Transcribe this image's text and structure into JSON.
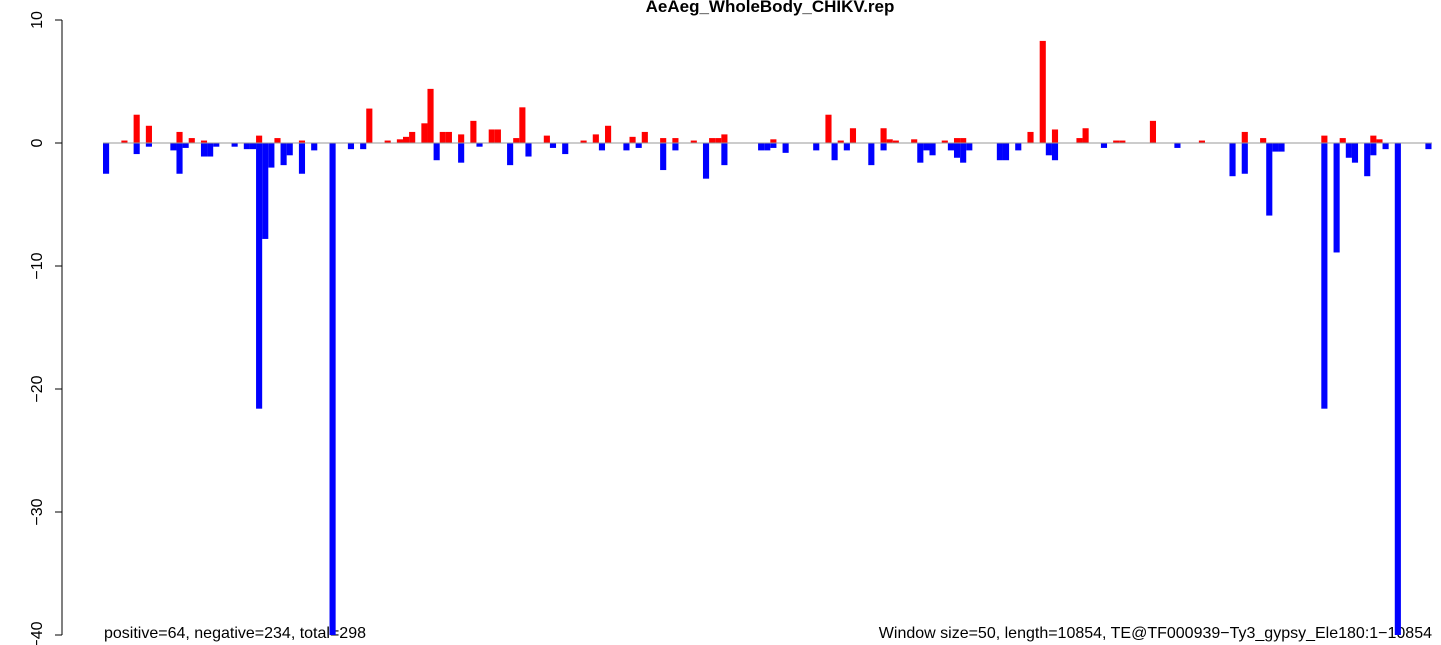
{
  "chart_data": {
    "type": "bar",
    "title": "AeAeg_WholeBody_CHIKV.rep",
    "annotations": [
      "positive=64, negative=234, total=298",
      "Window size=50, length=10854, TE@TF000939−Ty3_gypsy_Ele180:1−10854"
    ],
    "xlim": [
      0,
      10854
    ],
    "window": 50,
    "ylim": [
      -40,
      10
    ],
    "yticks": [
      10,
      0,
      {
        "value": -10,
        "label": "−10"
      },
      {
        "value": -20,
        "label": "−20"
      },
      {
        "value": -30,
        "label": "−30"
      },
      {
        "value": -40,
        "label": "−40"
      }
    ],
    "series": [
      {
        "name": "positive",
        "color": "#ff0000",
        "x": [
          150,
          250,
          350,
          600,
          700,
          800,
          1250,
          1400,
          1600,
          2150,
          2300,
          2400,
          2450,
          2500,
          2600,
          2650,
          2750,
          2800,
          2900,
          3000,
          3150,
          3200,
          3350,
          3400,
          3600,
          3900,
          4000,
          4100,
          4300,
          4400,
          4550,
          4650,
          4800,
          4950,
          5000,
          5050,
          5450,
          5900,
          6000,
          6100,
          6350,
          6400,
          6450,
          6600,
          6850,
          6950,
          7000,
          7550,
          7650,
          7750,
          7950,
          8000,
          8250,
          8300,
          8550,
          8950,
          9300,
          9450,
          9950,
          10100,
          10350,
          10400
        ],
        "values": [
          0.2,
          2.3,
          1.4,
          0.9,
          0.4,
          0.2,
          0.6,
          0.4,
          0.2,
          2.8,
          0.2,
          0.3,
          0.5,
          0.9,
          1.6,
          4.4,
          0.9,
          0.9,
          0.7,
          1.8,
          1.1,
          1.1,
          0.4,
          2.9,
          0.6,
          0.2,
          0.7,
          1.4,
          0.5,
          0.9,
          0.4,
          0.4,
          0.2,
          0.4,
          0.4,
          0.7,
          0.3,
          2.3,
          0.2,
          1.2,
          1.2,
          0.3,
          0.2,
          0.3,
          0.2,
          0.4,
          0.4,
          0.9,
          8.3,
          1.1,
          0.4,
          1.2,
          0.2,
          0.2,
          1.8,
          0.2,
          0.9,
          0.4,
          0.6,
          0.4,
          0.6,
          0.3
        ]
      },
      {
        "name": "negative",
        "color": "#0000ff",
        "x": [
          0,
          250,
          350,
          550,
          600,
          650,
          800,
          850,
          900,
          1050,
          1150,
          1200,
          1250,
          1300,
          1350,
          1450,
          1500,
          1600,
          1700,
          1850,
          2000,
          2100,
          2700,
          2900,
          3050,
          3300,
          3450,
          3650,
          3750,
          4050,
          4250,
          4350,
          4550,
          4650,
          4900,
          5050,
          5350,
          5400,
          5450,
          5550,
          5800,
          5950,
          6050,
          6250,
          6350,
          6650,
          6700,
          6750,
          6900,
          6950,
          7000,
          7050,
          7300,
          7350,
          7450,
          7700,
          7750,
          8150,
          8750,
          9200,
          9300,
          9500,
          9550,
          9600,
          9950,
          10050,
          10150,
          10200,
          10300,
          10350,
          10450,
          10550,
          10800
        ],
        "values": [
          -2.5,
          -0.9,
          -0.3,
          -0.6,
          -2.5,
          -0.4,
          -1.1,
          -1.1,
          -0.3,
          -0.3,
          -0.5,
          -0.5,
          -21.6,
          -7.8,
          -2,
          -1.8,
          -1,
          -2.5,
          -0.6,
          -40,
          -0.5,
          -0.5,
          -1.4,
          -1.6,
          -0.3,
          -1.8,
          -1.1,
          -0.4,
          -0.9,
          -0.6,
          -0.6,
          -0.4,
          -2.2,
          -0.6,
          -2.9,
          -1.8,
          -0.6,
          -0.6,
          -0.4,
          -0.8,
          -0.6,
          -1.4,
          -0.6,
          -1.8,
          -0.6,
          -1.6,
          -0.6,
          -1,
          -0.6,
          -1.2,
          -1.6,
          -0.6,
          -1.4,
          -1.4,
          -0.6,
          -1,
          -1.4,
          -0.4,
          -0.4,
          -2.7,
          -2.5,
          -5.9,
          -0.7,
          -0.7,
          -21.6,
          -8.9,
          -1.2,
          -1.6,
          -2.7,
          -1,
          -0.5,
          -40,
          -0.5
        ]
      }
    ]
  }
}
